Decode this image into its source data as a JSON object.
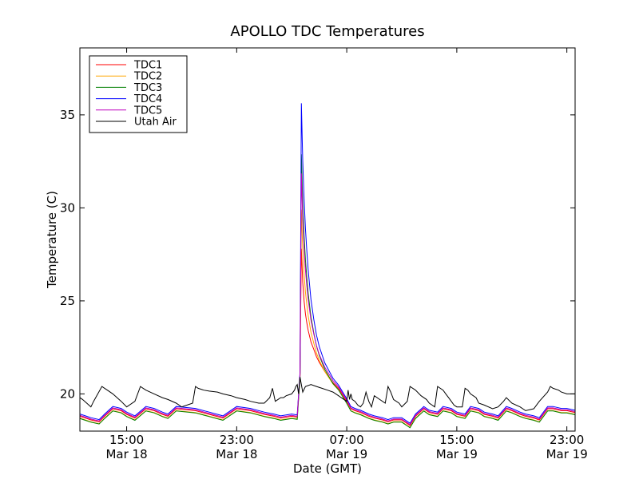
{
  "chart_data": {
    "type": "line",
    "title": "APOLLO TDC Temperatures",
    "xlabel": "Date (GMT)",
    "ylabel": "Temperature (C)",
    "x_unit": "hours since 2012-03-18 00:00 GMT",
    "xlim": [
      11.6,
      47.6
    ],
    "ylim": [
      18,
      38.6
    ],
    "yticks": [
      20,
      25,
      30,
      35
    ],
    "xticks": [
      {
        "x": 15,
        "time": "15:00",
        "date": "Mar 18"
      },
      {
        "x": 23,
        "time": "23:00",
        "date": "Mar 18"
      },
      {
        "x": 31,
        "time": "07:00",
        "date": "Mar 19"
      },
      {
        "x": 39,
        "time": "15:00",
        "date": "Mar 19"
      },
      {
        "x": 47,
        "time": "23:00",
        "date": "Mar 19"
      }
    ],
    "legend_position": "top-left",
    "series": [
      {
        "name": "TDC1",
        "color": "#ff0000",
        "offset": 0.0,
        "mode": "tdc",
        "x": [
          11.6,
          12,
          12.4,
          13,
          13.4,
          14,
          14.6,
          15,
          15.6,
          16.4,
          17,
          17.6,
          18,
          18.6,
          20,
          21,
          22,
          23,
          24,
          25,
          25.7,
          26.2,
          27,
          27.4,
          27.6,
          27.7,
          27.8,
          27.9,
          28.0,
          28.1,
          28.2,
          28.4,
          28.6,
          28.8,
          29,
          29.4,
          30,
          30.4,
          31,
          31.3,
          31.6,
          32,
          32.6,
          33,
          33.6,
          34,
          34.4,
          35,
          35.6,
          36,
          36.6,
          37,
          37.6,
          38,
          38.6,
          39,
          39.6,
          40,
          40.6,
          41,
          41.6,
          42,
          42.6,
          43,
          43.6,
          44,
          44.6,
          45,
          45.6,
          46,
          46.6,
          47,
          47.6
        ],
        "y": [
          18.8,
          18.7,
          18.6,
          18.5,
          18.8,
          19.2,
          19.1,
          18.9,
          18.7,
          19.2,
          19.1,
          18.9,
          18.8,
          19.2,
          19.1,
          18.9,
          18.7,
          19.2,
          19.1,
          18.9,
          18.8,
          18.7,
          18.8,
          18.75,
          21.0,
          27.8,
          26.0,
          25.0,
          24.3,
          23.8,
          23.4,
          22.8,
          22.4,
          22.0,
          21.7,
          21.2,
          20.6,
          20.3,
          19.6,
          19.2,
          19.1,
          19.0,
          18.8,
          18.7,
          18.6,
          18.5,
          18.6,
          18.6,
          18.3,
          18.8,
          19.2,
          19.0,
          18.9,
          19.2,
          19.1,
          18.9,
          18.8,
          19.2,
          19.1,
          18.9,
          18.8,
          18.7,
          19.2,
          19.1,
          18.9,
          18.8,
          18.7,
          18.6,
          19.2,
          19.2,
          19.1,
          19.1,
          19.0
        ]
      },
      {
        "name": "TDC2",
        "color": "#ffa500",
        "offset": -0.1,
        "mode": "tdc",
        "peak": 30.0
      },
      {
        "name": "TDC3",
        "color": "#008000",
        "offset": -0.12,
        "mode": "tdc",
        "peak": 33.0
      },
      {
        "name": "TDC4",
        "color": "#0000ff",
        "offset": 0.12,
        "mode": "tdc",
        "peak": 35.5
      },
      {
        "name": "TDC5",
        "color": "#bf00bf",
        "offset": 0.05,
        "mode": "tdc",
        "peak": 31.8
      },
      {
        "name": "Utah Air",
        "color": "#000000",
        "mode": "air",
        "x": [
          11.6,
          11.8,
          12.1,
          12.4,
          12.6,
          13.2,
          13.4,
          13.6,
          14.0,
          14.6,
          15.0,
          15.6,
          16.0,
          16.2,
          16.4,
          17.0,
          17.6,
          18.0,
          18.6,
          19.0,
          19.8,
          20.0,
          20.2,
          20.6,
          21.0,
          21.6,
          22.0,
          22.6,
          23.0,
          23.6,
          24.0,
          24.6,
          25.0,
          25.4,
          25.6,
          25.8,
          26.0,
          26.2,
          26.4,
          26.6,
          27.0,
          27.2,
          27.3,
          27.4,
          27.5,
          27.6,
          27.8,
          28.0,
          28.4,
          28.8,
          29.2,
          29.6,
          30.0,
          30.4,
          30.6,
          30.8,
          31.0,
          31.1,
          31.2,
          31.3,
          31.4,
          31.6,
          31.8,
          32.0,
          32.2,
          32.4,
          32.6,
          32.8,
          33.0,
          33.4,
          33.8,
          34.0,
          34.2,
          34.4,
          34.8,
          35.0,
          35.4,
          35.6,
          36.0,
          36.4,
          36.8,
          37.0,
          37.2,
          37.4,
          37.6,
          38.0,
          38.2,
          38.4,
          38.6,
          38.8,
          39.0,
          39.4,
          39.6,
          39.8,
          40.0,
          40.4,
          40.6,
          41.0,
          41.6,
          42.0,
          42.4,
          42.6,
          43.0,
          43.6,
          44.0,
          44.6,
          45.0,
          45.6,
          45.8,
          46.0,
          46.4,
          46.6,
          47.0,
          47.6
        ],
        "y": [
          19.8,
          19.7,
          19.5,
          19.3,
          19.6,
          20.4,
          20.3,
          20.2,
          20.0,
          19.6,
          19.3,
          19.6,
          20.4,
          20.3,
          20.2,
          20.0,
          19.8,
          19.7,
          19.5,
          19.3,
          19.5,
          20.4,
          20.3,
          20.2,
          20.15,
          20.1,
          20.0,
          19.9,
          19.8,
          19.7,
          19.6,
          19.5,
          19.5,
          19.8,
          20.3,
          19.6,
          19.7,
          19.8,
          19.8,
          19.9,
          20.0,
          20.2,
          20.4,
          20.5,
          20.0,
          20.9,
          20.1,
          20.4,
          20.5,
          20.4,
          20.3,
          20.2,
          20.1,
          19.9,
          19.8,
          19.7,
          19.6,
          20.2,
          19.7,
          20.0,
          19.7,
          19.6,
          19.4,
          19.3,
          19.5,
          20.1,
          19.6,
          19.3,
          19.9,
          19.7,
          19.5,
          20.4,
          20.1,
          19.7,
          19.5,
          19.3,
          19.6,
          20.4,
          20.2,
          19.9,
          19.7,
          19.5,
          19.4,
          19.3,
          20.4,
          20.2,
          20.0,
          19.8,
          19.6,
          19.4,
          19.3,
          19.3,
          20.3,
          20.2,
          20.0,
          19.8,
          19.5,
          19.4,
          19.2,
          19.3,
          19.6,
          19.8,
          19.5,
          19.3,
          19.1,
          19.2,
          19.6,
          20.1,
          20.4,
          20.3,
          20.2,
          20.1,
          20.0,
          20.0
        ]
      }
    ]
  }
}
